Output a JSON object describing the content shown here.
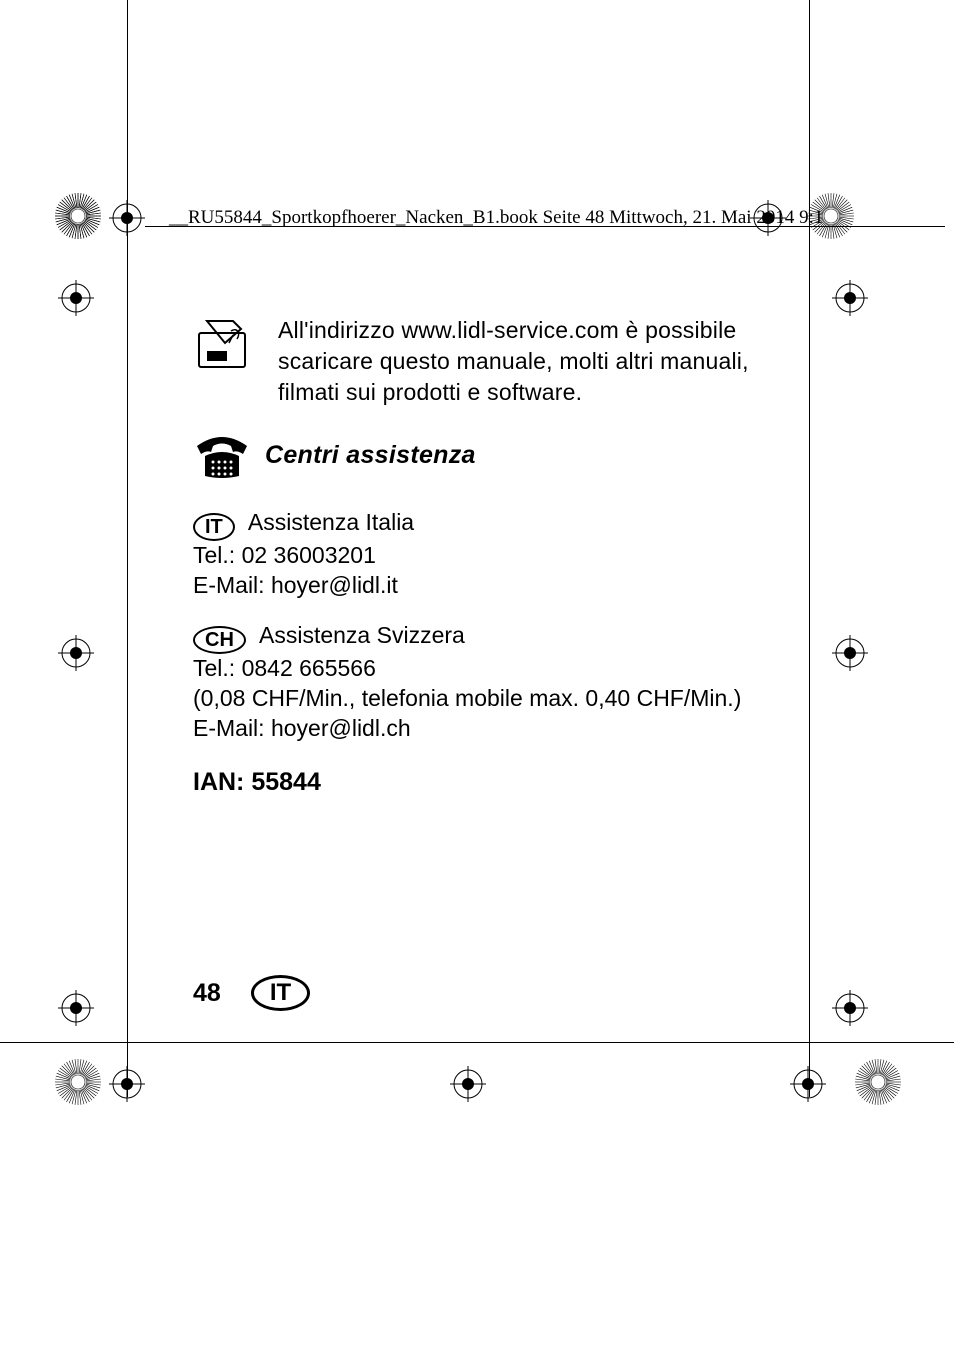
{
  "header": {
    "text": "__RU55844_Sportkopfhoerer_Nacken_B1.book  Seite 48  Mittwoch, 21. Mai 2014  9:1"
  },
  "online_section": {
    "text": "All'indirizzo www.lidl-service.com è possibile scaricare questo manuale, molti altri manuali, filmati sui prodotti e software."
  },
  "service_title": "Centri assistenza",
  "italy": {
    "badge": "IT",
    "name": " Assistenza Italia",
    "tel": "Tel.: 02 36003201",
    "email": "E-Mail: hoyer@lidl.it"
  },
  "switzerland": {
    "badge": "CH",
    "name": " Assistenza Svizzera",
    "tel": "Tel.: 0842 665566",
    "cost": "(0,08 CHF/Min., telefonia mobile max. 0,40 CHF/Min.)",
    "email": "E-Mail: hoyer@lidl.ch"
  },
  "ian": "IAN: 55844",
  "footer": {
    "page_number": "48",
    "lang": "IT"
  },
  "colors": {
    "text": "#000000",
    "background": "#ffffff",
    "mark_stroke": "#000000"
  }
}
